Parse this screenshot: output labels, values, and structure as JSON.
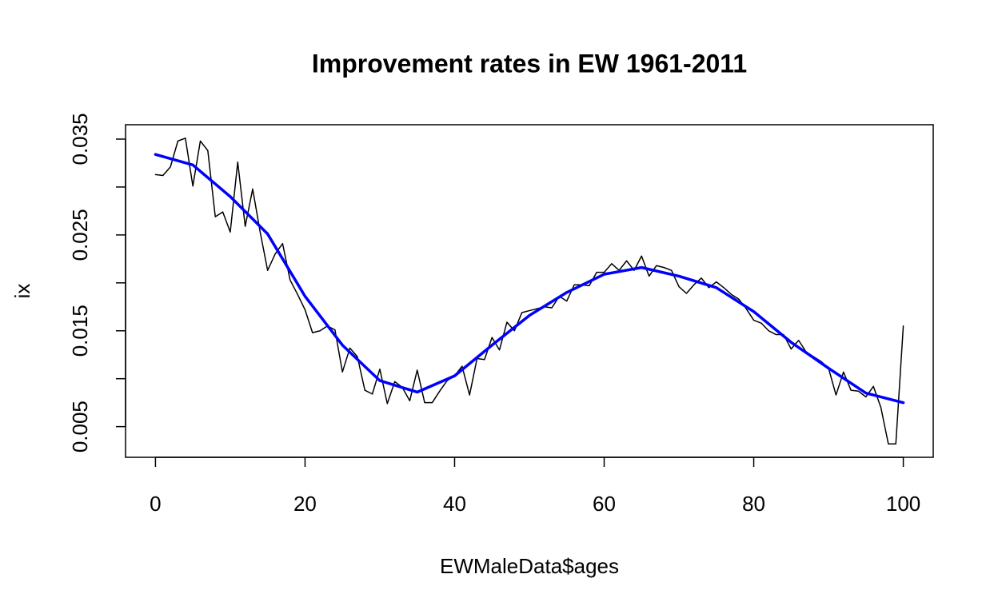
{
  "chart_data": {
    "type": "line",
    "title": "Improvement rates in EW 1961-2011",
    "xlabel": "EWMaleData$ages",
    "ylabel": "ix",
    "x": [
      0,
      1,
      2,
      3,
      4,
      5,
      6,
      7,
      8,
      9,
      10,
      11,
      12,
      13,
      14,
      15,
      16,
      17,
      18,
      19,
      20,
      21,
      22,
      23,
      24,
      25,
      26,
      27,
      28,
      29,
      30,
      31,
      32,
      33,
      34,
      35,
      36,
      37,
      38,
      39,
      40,
      41,
      42,
      43,
      44,
      45,
      46,
      47,
      48,
      49,
      50,
      51,
      52,
      53,
      54,
      55,
      56,
      57,
      58,
      59,
      60,
      61,
      62,
      63,
      64,
      65,
      66,
      67,
      68,
      69,
      70,
      71,
      72,
      73,
      74,
      75,
      76,
      77,
      78,
      79,
      80,
      81,
      82,
      83,
      84,
      85,
      86,
      87,
      88,
      89,
      90,
      91,
      92,
      93,
      94,
      95,
      96,
      97,
      98,
      99,
      100
    ],
    "series": [
      {
        "color": "#000000",
        "values": [
          0.0313,
          0.0312,
          0.0321,
          0.0348,
          0.0351,
          0.0301,
          0.0348,
          0.0338,
          0.0269,
          0.0274,
          0.0253,
          0.0326,
          0.0259,
          0.0298,
          0.0253,
          0.0213,
          0.023,
          0.0241,
          0.0203,
          0.0188,
          0.0172,
          0.0148,
          0.015,
          0.0155,
          0.0151,
          0.0107,
          0.0132,
          0.0123,
          0.0088,
          0.0084,
          0.011,
          0.0074,
          0.0097,
          0.0091,
          0.0077,
          0.0109,
          0.0075,
          0.0075,
          0.0087,
          0.0098,
          0.0103,
          0.0113,
          0.0083,
          0.0121,
          0.012,
          0.0143,
          0.013,
          0.0159,
          0.015,
          0.0169,
          0.0171,
          0.0173,
          0.0175,
          0.0174,
          0.0186,
          0.0181,
          0.0198,
          0.0198,
          0.0197,
          0.0211,
          0.0211,
          0.022,
          0.0213,
          0.0223,
          0.0213,
          0.0228,
          0.0207,
          0.0218,
          0.0216,
          0.0213,
          0.0196,
          0.0189,
          0.0198,
          0.0205,
          0.0195,
          0.0201,
          0.0195,
          0.0188,
          0.0183,
          0.0173,
          0.0161,
          0.0158,
          0.015,
          0.0146,
          0.0146,
          0.0131,
          0.014,
          0.0128,
          0.0123,
          0.0118,
          0.0111,
          0.0083,
          0.0107,
          0.0088,
          0.0087,
          0.0081,
          0.0092,
          0.007,
          0.0032,
          0.0032,
          0.0155
        ]
      },
      {
        "color": "#0000ff",
        "x": [
          0,
          5,
          10,
          15,
          20,
          25,
          30,
          35,
          40,
          45,
          50,
          55,
          60,
          65,
          70,
          75,
          80,
          85,
          90,
          95,
          100
        ],
        "values": [
          0.0334,
          0.0323,
          0.029,
          0.0251,
          0.0186,
          0.0135,
          0.0098,
          0.0086,
          0.0103,
          0.0135,
          0.0166,
          0.019,
          0.0209,
          0.0216,
          0.0207,
          0.0195,
          0.017,
          0.0138,
          0.0111,
          0.0085,
          0.0075
        ]
      }
    ],
    "xlim": [
      -4,
      104
    ],
    "xticks": [
      0,
      20,
      40,
      60,
      80,
      100
    ],
    "ylim": [
      0.0018,
      0.0365
    ],
    "yticks": [
      0.005,
      {
        "value": 0.01,
        "label": null
      },
      0.015,
      {
        "value": 0.02,
        "label": null
      },
      0.025,
      {
        "value": 0.03,
        "label": null
      },
      0.035
    ]
  }
}
